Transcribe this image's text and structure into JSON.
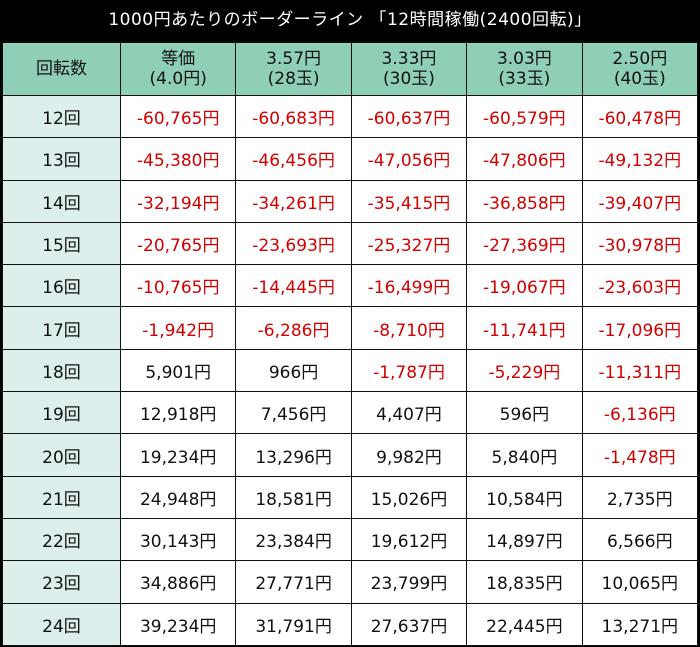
{
  "title": "1000円あたりのボーダーライン 「12時間稼働(2400回転)」",
  "corner_label": "回転数",
  "columns": [
    {
      "line1": "等価",
      "line2": "(4.0円)"
    },
    {
      "line1": "3.57円",
      "line2": "(28玉)"
    },
    {
      "line1": "3.33円",
      "line2": "(30玉)"
    },
    {
      "line1": "3.03円",
      "line2": "(33玉)"
    },
    {
      "line1": "2.50円",
      "line2": "(40玉)"
    }
  ],
  "rows": [
    {
      "label": "12回",
      "values": [
        "-60,765円",
        "-60,683円",
        "-60,637円",
        "-60,579円",
        "-60,478円"
      ]
    },
    {
      "label": "13回",
      "values": [
        "-45,380円",
        "-46,456円",
        "-47,056円",
        "-47,806円",
        "-49,132円"
      ]
    },
    {
      "label": "14回",
      "values": [
        "-32,194円",
        "-34,261円",
        "-35,415円",
        "-36,858円",
        "-39,407円"
      ]
    },
    {
      "label": "15回",
      "values": [
        "-20,765円",
        "-23,693円",
        "-25,327円",
        "-27,369円",
        "-30,978円"
      ]
    },
    {
      "label": "16回",
      "values": [
        "-10,765円",
        "-14,445円",
        "-16,499円",
        "-19,067円",
        "-23,603円"
      ]
    },
    {
      "label": "17回",
      "values": [
        "-1,942円",
        "-6,286円",
        "-8,710円",
        "-11,741円",
        "-17,096円"
      ]
    },
    {
      "label": "18回",
      "values": [
        "5,901円",
        "966円",
        "-1,787円",
        "-5,229円",
        "-11,311円"
      ]
    },
    {
      "label": "19回",
      "values": [
        "12,918円",
        "7,456円",
        "4,407円",
        "596円",
        "-6,136円"
      ]
    },
    {
      "label": "20回",
      "values": [
        "19,234円",
        "13,296円",
        "9,982円",
        "5,840円",
        "-1,478円"
      ]
    },
    {
      "label": "21回",
      "values": [
        "24,948円",
        "18,581円",
        "15,026円",
        "10,584円",
        "2,735円"
      ]
    },
    {
      "label": "22回",
      "values": [
        "30,143円",
        "23,384円",
        "19,612円",
        "14,897円",
        "6,566円"
      ]
    },
    {
      "label": "23回",
      "values": [
        "34,886円",
        "27,771円",
        "23,799円",
        "18,835円",
        "10,065円"
      ]
    },
    {
      "label": "24回",
      "values": [
        "39,234円",
        "31,791円",
        "27,637円",
        "22,445円",
        "13,271円"
      ]
    }
  ],
  "colors": {
    "header_bg": "#8fcfb6",
    "row_label_bg": "#dcefed",
    "negative": "#d40000",
    "title_bg": "#000000"
  }
}
